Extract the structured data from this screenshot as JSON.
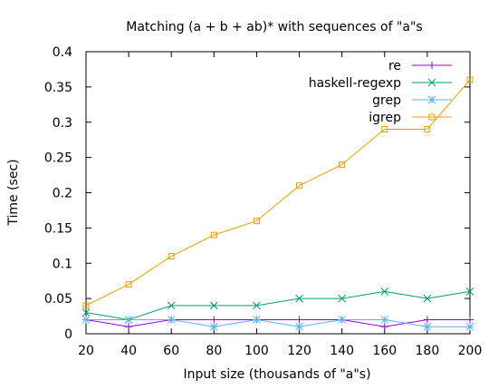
{
  "chart_data": {
    "type": "line",
    "title": "Matching (a + b + ab)* with sequences of \"a\"s",
    "xlabel": "Input size (thousands of \"a\"s)",
    "ylabel": "Time (sec)",
    "x": [
      20,
      40,
      60,
      80,
      100,
      120,
      140,
      160,
      180,
      200
    ],
    "xlim": [
      20,
      200
    ],
    "ylim": [
      0,
      0.4
    ],
    "xticks": [
      "20",
      "40",
      "60",
      "80",
      "100",
      "120",
      "140",
      "160",
      "180",
      "200"
    ],
    "yticks": [
      "0",
      "0.05",
      "0.1",
      "0.15",
      "0.2",
      "0.25",
      "0.3",
      "0.35",
      "0.4"
    ],
    "grid": false,
    "legend_position": "top-right",
    "series": [
      {
        "name": "re",
        "color": "#9400d3",
        "marker": "plus",
        "values": [
          0.02,
          0.01,
          0.02,
          0.02,
          0.02,
          0.02,
          0.02,
          0.01,
          0.02,
          0.02
        ]
      },
      {
        "name": "haskell-regexp",
        "color": "#009e73",
        "marker": "cross",
        "values": [
          0.03,
          0.02,
          0.04,
          0.04,
          0.04,
          0.05,
          0.05,
          0.06,
          0.05,
          0.06
        ]
      },
      {
        "name": "grep",
        "color": "#56b4e9",
        "marker": "star",
        "values": [
          0.02,
          0.02,
          0.02,
          0.01,
          0.02,
          0.01,
          0.02,
          0.02,
          0.01,
          0.01
        ]
      },
      {
        "name": "igrep",
        "color": "#e69f00",
        "marker": "square",
        "values": [
          0.04,
          0.07,
          0.11,
          0.14,
          0.16,
          0.21,
          0.24,
          0.29,
          0.29,
          0.36
        ]
      }
    ]
  }
}
